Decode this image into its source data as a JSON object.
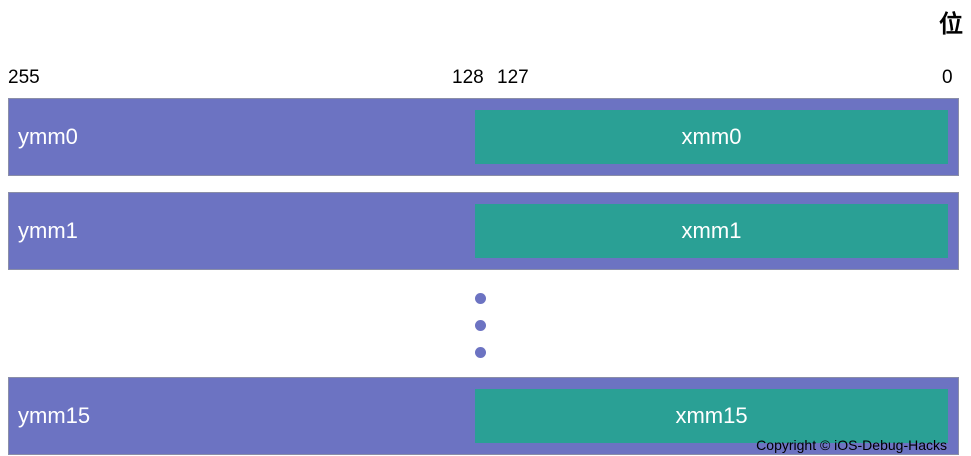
{
  "heading": "位",
  "bit_labels": {
    "b255": "255",
    "b128": "128",
    "b127": "127",
    "b0": "0"
  },
  "registers": [
    {
      "ymm": "ymm0",
      "xmm": "xmm0"
    },
    {
      "ymm": "ymm1",
      "xmm": "xmm1"
    },
    {
      "ymm": "ymm15",
      "xmm": "xmm15"
    }
  ],
  "copyright": "Copyright © iOS-Debug-Hacks",
  "colors": {
    "ymm": "#6c73c2",
    "xmm": "#2aa095",
    "dots": "#6c73c2"
  }
}
